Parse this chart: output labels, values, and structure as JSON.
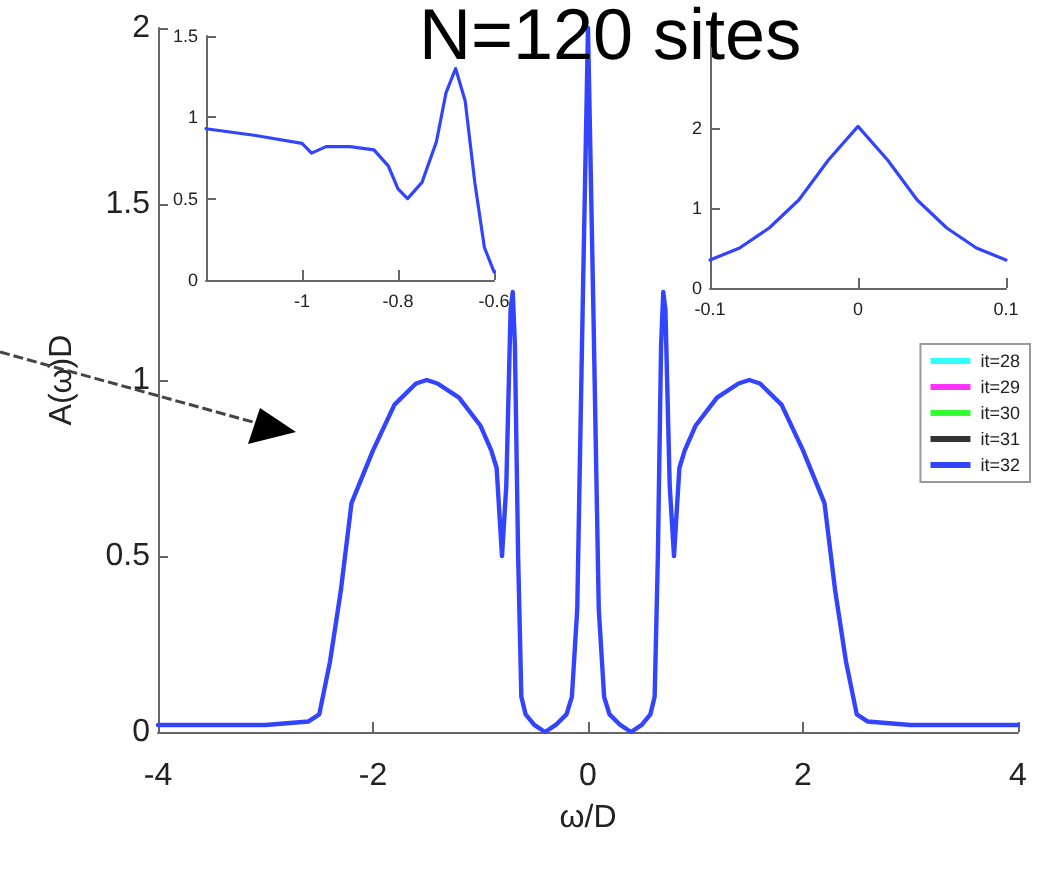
{
  "chart_data": [
    {
      "type": "line",
      "title": "N=120 sites",
      "xlabel": "ω/D",
      "ylabel": "A(ω)D",
      "xlim": [
        -4,
        4
      ],
      "ylim": [
        0,
        2
      ],
      "xticks": [
        -4,
        -2,
        0,
        2,
        4
      ],
      "yticks": [
        0,
        0.5,
        1,
        1.5,
        2
      ],
      "legend": "right",
      "grid": false,
      "line_style": "solid",
      "marker": "none",
      "x": [
        -4,
        -3,
        -2.6,
        -2.5,
        -2.4,
        -2.3,
        -2.2,
        -2.0,
        -1.8,
        -1.6,
        -1.5,
        -1.4,
        -1.2,
        -1.0,
        -0.9,
        -0.85,
        -0.8,
        -0.76,
        -0.72,
        -0.7,
        -0.68,
        -0.65,
        -0.62,
        -0.58,
        -0.5,
        -0.4,
        -0.3,
        -0.2,
        -0.15,
        -0.1,
        -0.05,
        0,
        0.05,
        0.1,
        0.15,
        0.2,
        0.3,
        0.4,
        0.5,
        0.58,
        0.62,
        0.65,
        0.68,
        0.7,
        0.72,
        0.76,
        0.8,
        0.85,
        0.9,
        1.0,
        1.2,
        1.4,
        1.5,
        1.6,
        1.8,
        2.0,
        2.2,
        2.3,
        2.4,
        2.5,
        2.6,
        3,
        4
      ],
      "series": [
        {
          "name": "it=28",
          "color": "#33ffff",
          "values": [
            null,
            null,
            null,
            null,
            null,
            null,
            null,
            null,
            null,
            null,
            null,
            null,
            null,
            null,
            null,
            null,
            null,
            null,
            null,
            null,
            null,
            null,
            null,
            null,
            null,
            null,
            null,
            null,
            null,
            null,
            null,
            null,
            null,
            null,
            null,
            null,
            null,
            null,
            null,
            null,
            null,
            null,
            null,
            null,
            null,
            null,
            null,
            null,
            null,
            null,
            null,
            null,
            null,
            null,
            null,
            null,
            null,
            null,
            null,
            null,
            null,
            null,
            null
          ]
        },
        {
          "name": "it=29",
          "color": "#ff33ff",
          "values": [
            null,
            null,
            null,
            null,
            null,
            null,
            null,
            null,
            null,
            null,
            null,
            null,
            null,
            null,
            null,
            null,
            null,
            null,
            null,
            null,
            null,
            null,
            null,
            null,
            null,
            null,
            null,
            null,
            null,
            null,
            null,
            null,
            null,
            null,
            null,
            null,
            null,
            null,
            null,
            null,
            null,
            null,
            null,
            null,
            null,
            null,
            null,
            null,
            null,
            null,
            null,
            null,
            null,
            null,
            null,
            null,
            null,
            null,
            null,
            null,
            null,
            null,
            null
          ]
        },
        {
          "name": "it=30",
          "color": "#33ff33",
          "values": [
            null,
            null,
            null,
            null,
            null,
            null,
            null,
            null,
            null,
            null,
            null,
            null,
            null,
            null,
            null,
            null,
            null,
            null,
            null,
            null,
            null,
            null,
            null,
            null,
            null,
            null,
            null,
            null,
            null,
            null,
            null,
            null,
            null,
            null,
            null,
            null,
            null,
            null,
            null,
            null,
            null,
            null,
            null,
            null,
            null,
            null,
            null,
            null,
            null,
            null,
            null,
            null,
            null,
            null,
            null,
            null,
            null,
            null,
            null,
            null,
            null,
            null,
            null
          ]
        },
        {
          "name": "it=31",
          "color": "#333333",
          "values": [
            null,
            null,
            null,
            null,
            null,
            null,
            null,
            null,
            null,
            null,
            null,
            null,
            null,
            null,
            null,
            null,
            null,
            null,
            null,
            null,
            null,
            null,
            null,
            null,
            null,
            null,
            null,
            null,
            null,
            null,
            null,
            null,
            null,
            null,
            null,
            null,
            null,
            null,
            null,
            null,
            null,
            null,
            null,
            null,
            null,
            null,
            null,
            null,
            null,
            null,
            null,
            null,
            null,
            null,
            null,
            null,
            null,
            null,
            null,
            null,
            null,
            null,
            null
          ]
        },
        {
          "name": "it=32",
          "color": "#3344ff",
          "values": [
            0.02,
            0.02,
            0.03,
            0.05,
            0.2,
            0.4,
            0.65,
            0.8,
            0.93,
            0.99,
            1.0,
            0.99,
            0.95,
            0.87,
            0.8,
            0.75,
            0.5,
            0.7,
            1.2,
            1.25,
            1.1,
            0.5,
            0.1,
            0.05,
            0.02,
            0.0,
            0.02,
            0.05,
            0.1,
            0.35,
            1.2,
            2.0,
            1.2,
            0.35,
            0.1,
            0.05,
            0.02,
            0.0,
            0.02,
            0.05,
            0.1,
            0.5,
            1.1,
            1.25,
            1.2,
            0.7,
            0.5,
            0.75,
            0.8,
            0.87,
            0.95,
            0.99,
            1.0,
            0.99,
            0.93,
            0.8,
            0.65,
            0.4,
            0.2,
            0.05,
            0.03,
            0.02,
            0.02
          ]
        }
      ]
    },
    {
      "type": "line",
      "xlim": [
        -1.2,
        -0.6
      ],
      "ylim": [
        0,
        1.5
      ],
      "xticks": [
        -1,
        -0.8,
        -0.6
      ],
      "yticks": [
        0,
        0.5,
        1,
        1.5
      ],
      "line_style": "solid",
      "marker": "none",
      "x": [
        -1.2,
        -1.1,
        -1.0,
        -0.98,
        -0.95,
        -0.9,
        -0.85,
        -0.82,
        -0.8,
        -0.78,
        -0.75,
        -0.72,
        -0.7,
        -0.68,
        -0.66,
        -0.64,
        -0.62,
        -0.6
      ],
      "series": [
        {
          "color": "#3344ff",
          "values": [
            0.93,
            0.89,
            0.84,
            0.78,
            0.82,
            0.82,
            0.8,
            0.7,
            0.56,
            0.5,
            0.6,
            0.85,
            1.15,
            1.3,
            1.1,
            0.6,
            0.2,
            0.05
          ]
        }
      ]
    },
    {
      "type": "line",
      "xlim": [
        -0.1,
        0.1
      ],
      "ylim": [
        0,
        3
      ],
      "xticks": [
        -0.1,
        0,
        0.1
      ],
      "yticks": [
        0,
        1,
        2
      ],
      "line_style": "solid",
      "marker": "none",
      "x": [
        -0.1,
        -0.08,
        -0.06,
        -0.04,
        -0.02,
        0,
        0.02,
        0.04,
        0.06,
        0.08,
        0.1
      ],
      "series": [
        {
          "color": "#3344ff",
          "values": [
            0.35,
            0.5,
            0.75,
            1.1,
            1.6,
            2.02,
            1.6,
            1.1,
            0.75,
            0.5,
            0.35
          ]
        }
      ]
    }
  ]
}
